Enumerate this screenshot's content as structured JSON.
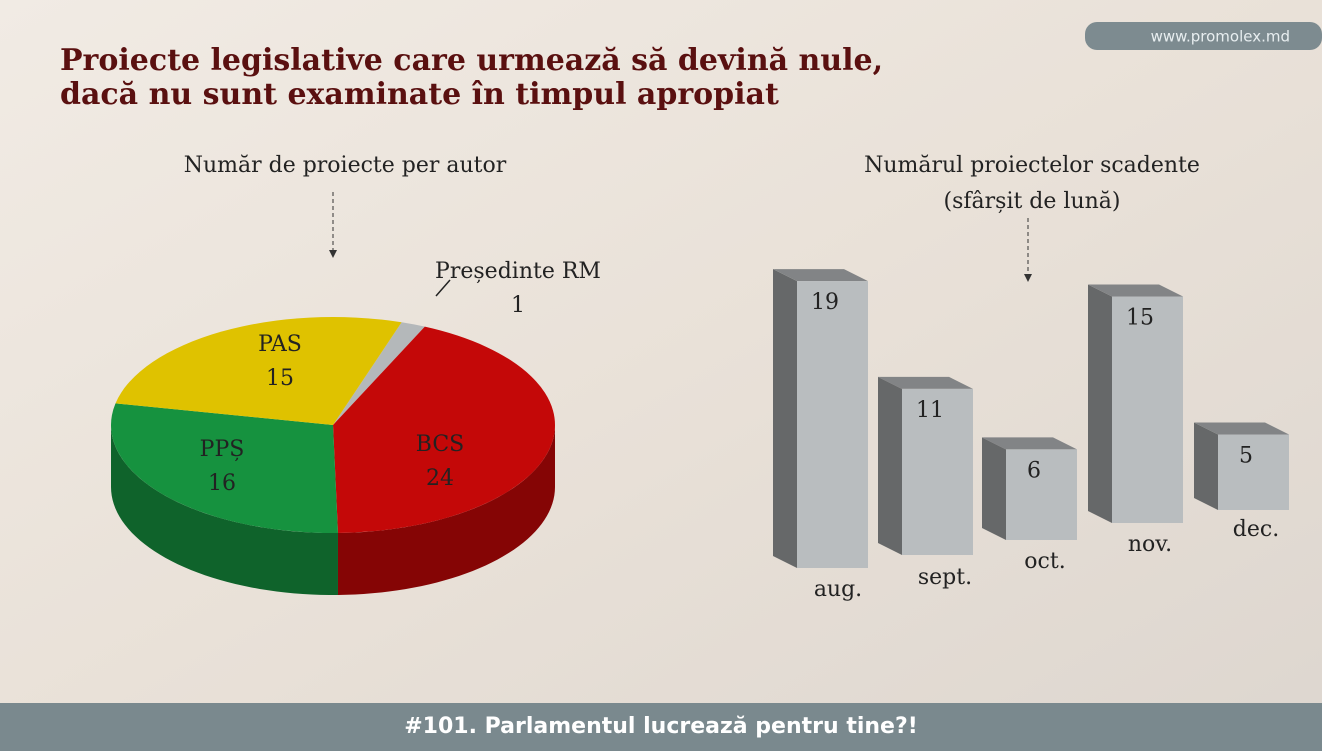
{
  "title": [
    "Proiecte legislative care urmează să devină nule,",
    "dacă nu sunt examinate în timpul apropiat"
  ],
  "website": "www.promolex.md",
  "footer": "#101. Parlamentul lucrează pentru tine?!",
  "chart_data": [
    {
      "type": "pie",
      "title": "Număr de proiecte per autor",
      "categories": [
        "Președinte RM",
        "BCS",
        "PPȘ",
        "PAS"
      ],
      "values": [
        1,
        24,
        16,
        15
      ],
      "colors": [
        "#b4b8ba",
        "#c40808",
        "#16923f",
        "#dfc200"
      ]
    },
    {
      "type": "bar",
      "title": [
        "Numărul proiectelor scadente",
        "(sfârșit de lună)"
      ],
      "categories": [
        "aug.",
        "sept.",
        "oct.",
        "nov.",
        "dec."
      ],
      "values": [
        19,
        11,
        6,
        15,
        5
      ],
      "color": "#b9bdbf"
    }
  ]
}
